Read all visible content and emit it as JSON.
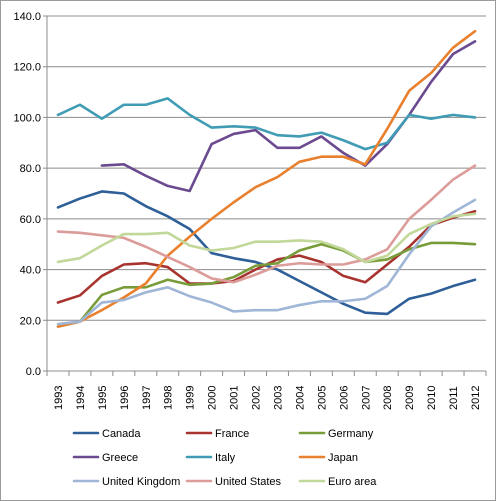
{
  "chart_data": {
    "type": "line",
    "title": "",
    "xlabel": "",
    "ylabel": "",
    "ylim": [
      0,
      140
    ],
    "yticks": [
      "0.0",
      "20.0",
      "40.0",
      "60.0",
      "80.0",
      "100.0",
      "120.0",
      "140.0"
    ],
    "x": [
      "1993",
      "1994",
      "1995",
      "1996",
      "1997",
      "1998",
      "1999",
      "2000",
      "2001",
      "2002",
      "2003",
      "2004",
      "2005",
      "2006",
      "2007",
      "2008",
      "2009",
      "2010",
      "2011",
      "2012"
    ],
    "grid": true,
    "legend_position": "bottom",
    "series": [
      {
        "name": "Canada",
        "color": "#2e5f98",
        "values": [
          64.5,
          68,
          70.8,
          70,
          65,
          61,
          56,
          46.5,
          44.5,
          43,
          40,
          35.5,
          31,
          26.5,
          23,
          22.5,
          28.5,
          30.5,
          33.5,
          36
        ]
      },
      {
        "name": "France",
        "color": "#a83430",
        "values": [
          27,
          29.8,
          37.5,
          42,
          42.5,
          41,
          34.5,
          34.5,
          35.5,
          40,
          44,
          45.5,
          43,
          37.5,
          35,
          42,
          49,
          57.5,
          60.5,
          63
        ]
      },
      {
        "name": "Germany",
        "color": "#789c3a",
        "values": [
          17.5,
          19.5,
          30,
          33,
          33,
          36,
          34,
          34.5,
          37,
          41.5,
          42.5,
          47.5,
          50,
          47.5,
          43,
          44,
          48,
          50.5,
          50.5,
          50
        ]
      },
      {
        "name": "Greece",
        "color": "#6b4a8f",
        "values": [
          null,
          null,
          81,
          81.5,
          77,
          73,
          71,
          89.5,
          93.5,
          95,
          88,
          88,
          92.5,
          86,
          81,
          89.5,
          101,
          114,
          125,
          130
        ]
      },
      {
        "name": "Italy",
        "color": "#3f9cb4",
        "values": [
          101,
          105,
          99.5,
          105,
          105,
          107.5,
          101,
          96,
          96.5,
          96,
          93,
          92.5,
          94,
          91,
          87.5,
          90,
          101,
          99.5,
          101,
          100
        ]
      },
      {
        "name": "Japan",
        "color": "#e8802e",
        "values": [
          17.5,
          19.5,
          24,
          29,
          34.5,
          45.5,
          53,
          60,
          66.5,
          72.5,
          76.5,
          82.5,
          84.5,
          84.5,
          81.5,
          95.5,
          110.5,
          117.5,
          127.5,
          134
        ]
      },
      {
        "name": "United Kingdom",
        "color": "#9fb6d7",
        "values": [
          18.5,
          19.5,
          27,
          28,
          31,
          33,
          29.5,
          27,
          23.5,
          24,
          24,
          26,
          27.5,
          27.5,
          28.5,
          33.5,
          46,
          57,
          62.5,
          67.5
        ]
      },
      {
        "name": "United States",
        "color": "#dc9c9a",
        "values": [
          55,
          54.5,
          53.5,
          52.5,
          49,
          45,
          41,
          36.5,
          35,
          38,
          41.5,
          42.5,
          42,
          42,
          44,
          48,
          60,
          67.5,
          75.5,
          81
        ]
      },
      {
        "name": "Euro area",
        "color": "#c2d89a",
        "values": [
          43,
          44.5,
          49.5,
          54,
          54,
          54.5,
          49.5,
          47.5,
          48.5,
          51,
          51,
          51.5,
          51,
          48,
          43,
          45.5,
          54,
          58,
          61,
          62
        ]
      }
    ]
  }
}
